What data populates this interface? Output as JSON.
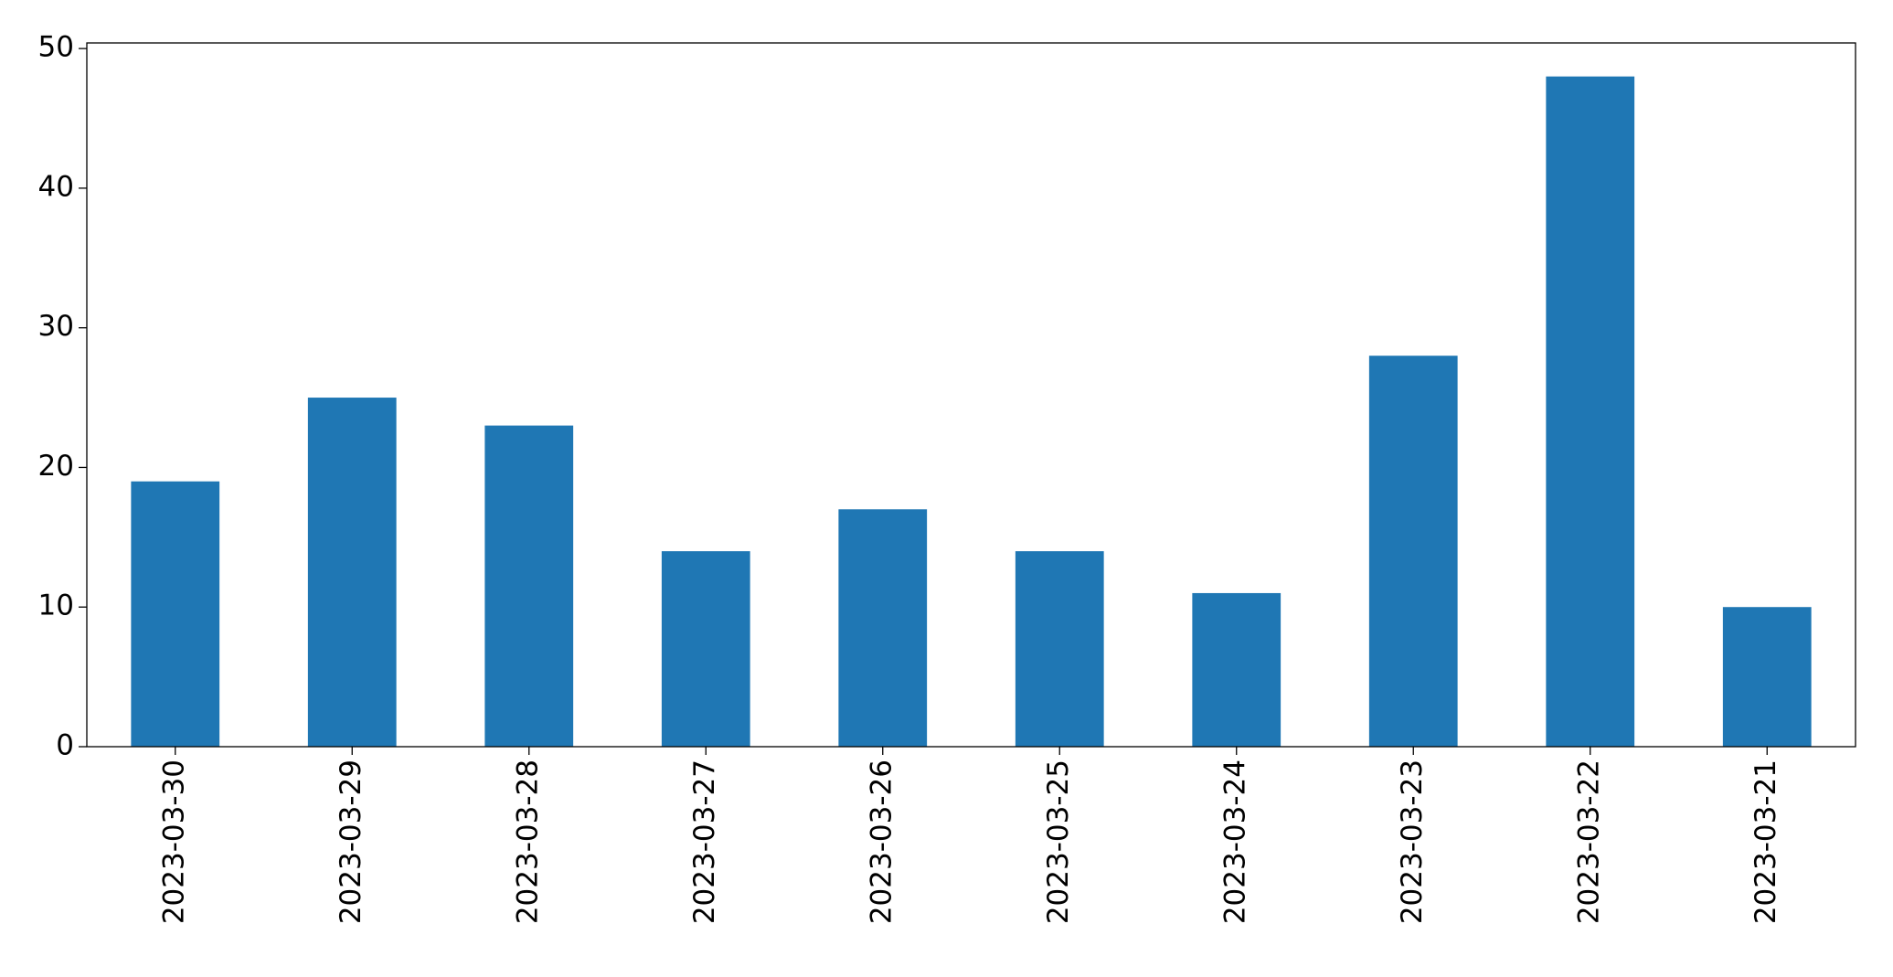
{
  "chart_data": {
    "type": "bar",
    "categories": [
      "2023-03-30",
      "2023-03-29",
      "2023-03-28",
      "2023-03-27",
      "2023-03-26",
      "2023-03-25",
      "2023-03-24",
      "2023-03-23",
      "2023-03-22",
      "2023-03-21"
    ],
    "values": [
      19,
      25,
      23,
      14,
      17,
      14,
      11,
      28,
      48,
      10
    ],
    "color": "#1f77b4",
    "ylim": [
      0,
      50.4
    ],
    "yticks": [
      0,
      10,
      20,
      30,
      40,
      50
    ],
    "grid": false
  }
}
